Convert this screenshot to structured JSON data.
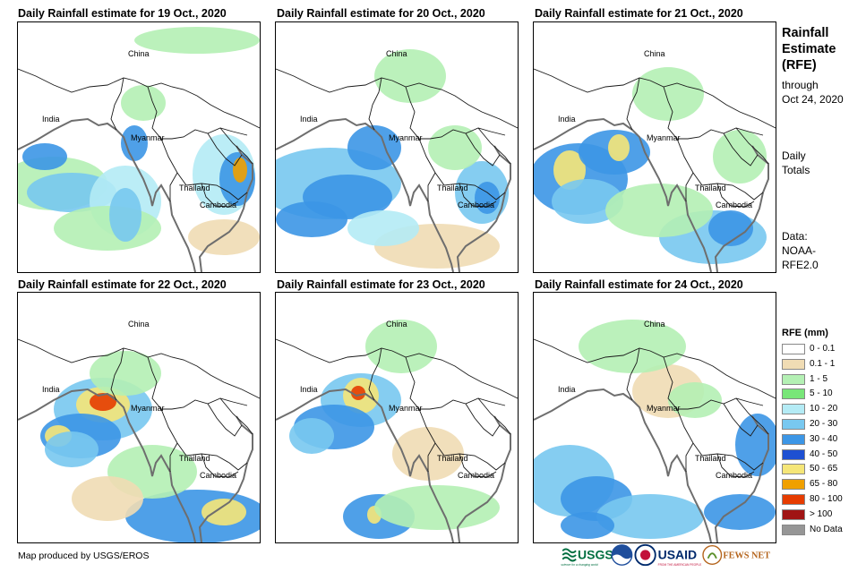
{
  "panels": [
    {
      "title": "Daily Rainfall estimate for 19 Oct., 2020",
      "day": 19
    },
    {
      "title": "Daily Rainfall estimate for 20 Oct., 2020",
      "day": 20
    },
    {
      "title": "Daily Rainfall estimate for 21 Oct., 2020",
      "day": 21
    },
    {
      "title": "Daily Rainfall estimate for 22 Oct., 2020",
      "day": 22
    },
    {
      "title": "Daily Rainfall estimate for 23 Oct., 2020",
      "day": 23
    },
    {
      "title": "Daily Rainfall estimate for 24 Oct., 2020",
      "day": 24
    }
  ],
  "place_labels": {
    "china": "China",
    "india": "India",
    "myanmar": "Myanmar",
    "thailand": "Thailand",
    "cambodia": "Cambodia"
  },
  "sidebar": {
    "title_line1": "Rainfall",
    "title_line2": "Estimate",
    "title_line3": "(RFE)",
    "through": "through",
    "date": "Oct 24, 2020",
    "daily1": "Daily",
    "daily2": "Totals",
    "data1": "Data:",
    "data2": "NOAA-",
    "data3": "RFE2.0"
  },
  "legend": {
    "title": "RFE (mm)",
    "items": [
      {
        "label": "0 - 0.1",
        "color": "#ffffff"
      },
      {
        "label": "0.1 - 1",
        "color": "#f0dcb4"
      },
      {
        "label": "1 - 5",
        "color": "#b4f0b4"
      },
      {
        "label": "5 - 10",
        "color": "#78e678"
      },
      {
        "label": "10 - 20",
        "color": "#b4ebf5"
      },
      {
        "label": "20 - 30",
        "color": "#78c8f0"
      },
      {
        "label": "30 - 40",
        "color": "#3c96e6"
      },
      {
        "label": "40 - 50",
        "color": "#1e50d2"
      },
      {
        "label": "50 - 65",
        "color": "#f5e678"
      },
      {
        "label": "65 - 80",
        "color": "#f0a000"
      },
      {
        "label": "80 - 100",
        "color": "#e63c00"
      },
      {
        "label": "> 100",
        "color": "#a01414"
      },
      {
        "label": "No Data",
        "color": "#969696"
      }
    ]
  },
  "credit": "Map produced by USGS/EROS",
  "logos": {
    "usgs": "USGS",
    "usgs_tag": "science for a changing world",
    "usaid": "USAID",
    "usaid_tag": "FROM THE AMERICAN PEOPLE",
    "fewsnet": "FEWS NET"
  }
}
